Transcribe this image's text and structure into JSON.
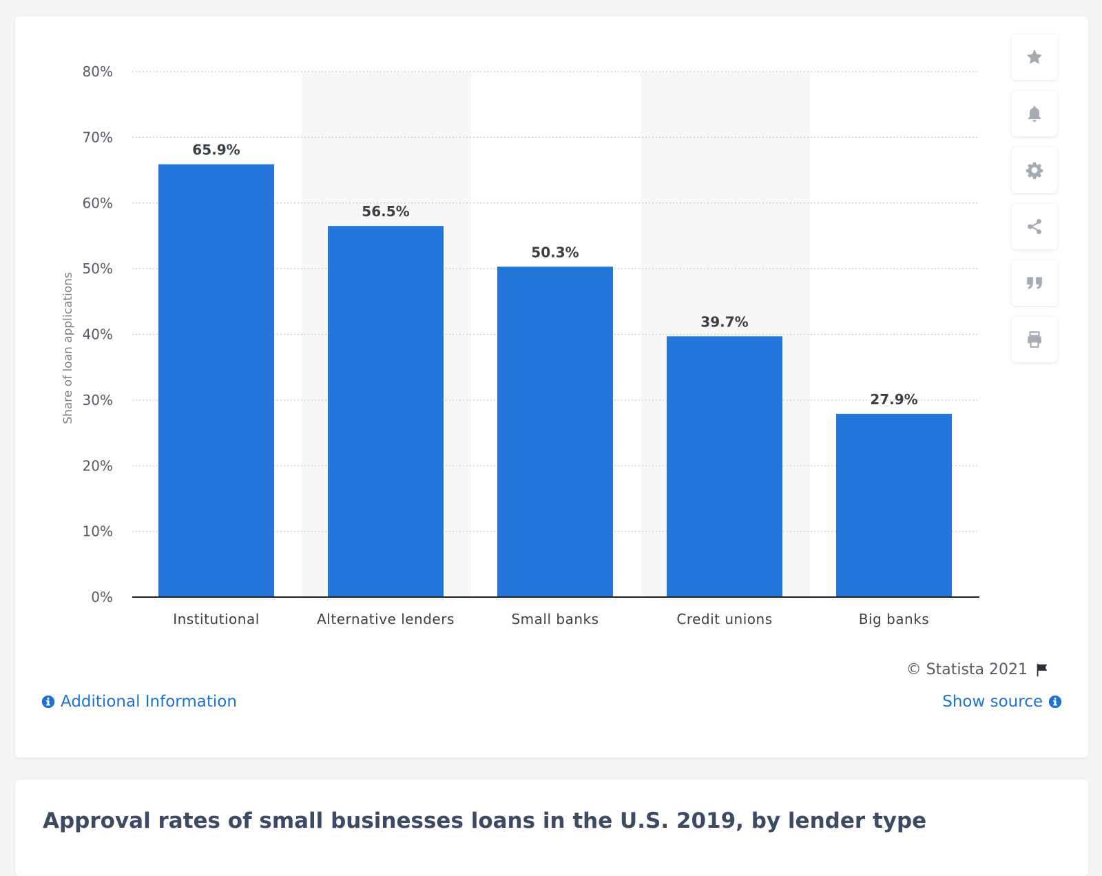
{
  "chart_data": {
    "type": "bar",
    "title": "Approval rates of small businesses loans in the U.S. 2019, by lender type",
    "categories": [
      "Institutional",
      "Alternative lenders",
      "Small banks",
      "Credit unions",
      "Big banks"
    ],
    "values": [
      65.9,
      56.5,
      50.3,
      39.7,
      27.9
    ],
    "value_labels": [
      "65.9%",
      "56.5%",
      "50.3%",
      "39.7%",
      "27.9%"
    ],
    "xlabel": "",
    "ylabel": "Share of loan applications",
    "ylim": [
      0,
      80
    ],
    "yticks": [
      0,
      10,
      20,
      30,
      40,
      50,
      60,
      70,
      80
    ],
    "ytick_labels": [
      "0%",
      "10%",
      "20%",
      "30%",
      "40%",
      "50%",
      "60%",
      "70%",
      "80%"
    ],
    "grid": true,
    "bar_color": "#2576db"
  },
  "footer": {
    "copyright": "© Statista 2021",
    "additional_info": "Additional Information",
    "show_source": "Show source"
  },
  "sidebar": {
    "icons": [
      "star-icon",
      "bell-icon",
      "gear-icon",
      "share-icon",
      "quote-icon",
      "print-icon"
    ]
  },
  "colors": {
    "accent": "#1e73d2",
    "bar": "#2576db",
    "title": "#3b4b63"
  }
}
